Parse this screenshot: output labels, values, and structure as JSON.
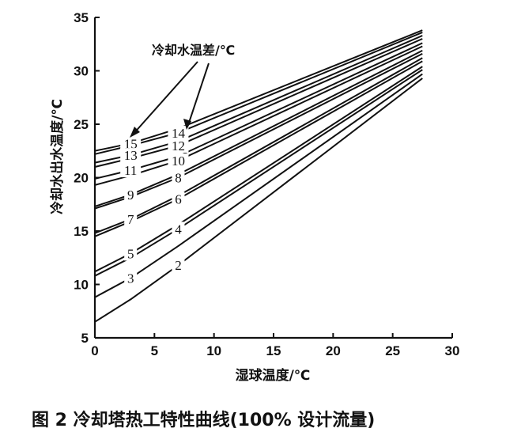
{
  "chart_data": {
    "type": "line",
    "title": "",
    "xlabel": "湿球温度/℃",
    "ylabel": "冷却水出水温度/℃",
    "xlim": [
      0,
      30
    ],
    "ylim": [
      5,
      35
    ],
    "xticks": [
      0,
      5,
      10,
      15,
      20,
      25,
      30
    ],
    "yticks": [
      5,
      10,
      15,
      20,
      25,
      30,
      35
    ],
    "grid": false,
    "legend_title": "冷却水温差/℃",
    "series": [
      {
        "name": "15",
        "x": [
          0,
          3,
          7,
          27.5
        ],
        "y": [
          22.5,
          23.2,
          24.6,
          33.8
        ]
      },
      {
        "name": "14",
        "x": [
          0,
          3,
          7,
          27.5
        ],
        "y": [
          22.2,
          23.0,
          24.2,
          33.6
        ]
      },
      {
        "name": "13",
        "x": [
          0,
          3,
          7,
          27.5
        ],
        "y": [
          21.4,
          22.1,
          23.4,
          33.3
        ]
      },
      {
        "name": "12",
        "x": [
          0,
          3,
          7,
          27.5
        ],
        "y": [
          21.0,
          21.8,
          23.0,
          33.0
        ]
      },
      {
        "name": "11",
        "x": [
          0,
          3,
          7,
          27.5
        ],
        "y": [
          19.9,
          20.7,
          22.0,
          32.6
        ]
      },
      {
        "name": "10",
        "x": [
          0,
          3,
          7,
          27.5
        ],
        "y": [
          19.3,
          20.2,
          21.6,
          32.3
        ]
      },
      {
        "name": "9",
        "x": [
          0,
          3,
          7,
          27.5
        ],
        "y": [
          17.3,
          18.4,
          20.3,
          31.9
        ]
      },
      {
        "name": "8",
        "x": [
          0,
          3,
          7,
          27.5
        ],
        "y": [
          17.1,
          18.2,
          20.0,
          31.6
        ]
      },
      {
        "name": "7",
        "x": [
          0,
          3,
          7,
          27.5
        ],
        "y": [
          14.8,
          16.1,
          18.3,
          31.2
        ]
      },
      {
        "name": "6",
        "x": [
          0,
          3,
          7,
          27.5
        ],
        "y": [
          14.5,
          15.9,
          18.0,
          30.9
        ]
      },
      {
        "name": "5",
        "x": [
          0,
          3,
          7,
          27.5
        ],
        "y": [
          11.2,
          12.9,
          15.6,
          30.4
        ]
      },
      {
        "name": "4",
        "x": [
          0,
          3,
          7,
          27.5
        ],
        "y": [
          10.8,
          12.5,
          15.2,
          30.1
        ]
      },
      {
        "name": "3",
        "x": [
          0,
          3,
          7,
          27.5
        ],
        "y": [
          8.8,
          10.6,
          13.6,
          29.7
        ]
      },
      {
        "name": "2",
        "x": [
          0,
          3,
          7,
          27.5
        ],
        "y": [
          6.5,
          8.6,
          11.8,
          29.3
        ]
      }
    ]
  },
  "figure_caption": "图 2   冷却塔热工特性曲线(100% 设计流量)"
}
